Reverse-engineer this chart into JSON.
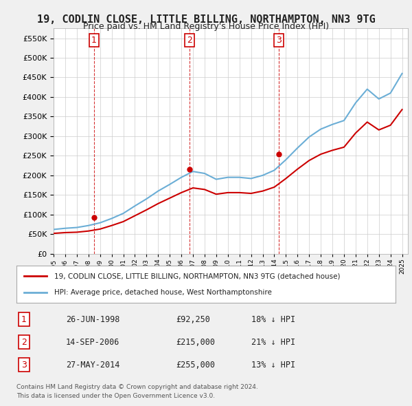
{
  "title": "19, CODLIN CLOSE, LITTLE BILLING, NORTHAMPTON, NN3 9TG",
  "subtitle": "Price paid vs. HM Land Registry's House Price Index (HPI)",
  "legend_line1": "19, CODLIN CLOSE, LITTLE BILLING, NORTHAMPTON, NN3 9TG (detached house)",
  "legend_line2": "HPI: Average price, detached house, West Northamptonshire",
  "transactions": [
    {
      "num": 1,
      "date": "26-JUN-1998",
      "price": "£92,250",
      "hpi": "18% ↓ HPI",
      "year": 1998.49
    },
    {
      "num": 2,
      "date": "14-SEP-2006",
      "price": "£215,000",
      "hpi": "21% ↓ HPI",
      "year": 2006.71
    },
    {
      "num": 3,
      "date": "27-MAY-2014",
      "price": "£255,000",
      "hpi": "13% ↓ HPI",
      "year": 2014.41
    }
  ],
  "transaction_prices": [
    92250,
    215000,
    255000
  ],
  "footnote1": "Contains HM Land Registry data © Crown copyright and database right 2024.",
  "footnote2": "This data is licensed under the Open Government Licence v3.0.",
  "hpi_color": "#6baed6",
  "price_color": "#cc0000",
  "vline_color": "#cc0000",
  "bg_color": "#f0f0f0",
  "plot_bg": "#ffffff",
  "grid_color": "#cccccc",
  "ylim": [
    0,
    575000
  ],
  "yticks": [
    0,
    50000,
    100000,
    150000,
    200000,
    250000,
    300000,
    350000,
    400000,
    450000,
    500000,
    550000
  ],
  "hpi_years": [
    1995,
    1996,
    1997,
    1998,
    1999,
    2000,
    2001,
    2002,
    2003,
    2004,
    2005,
    2006,
    2007,
    2008,
    2009,
    2010,
    2011,
    2012,
    2013,
    2014,
    2015,
    2016,
    2017,
    2018,
    2019,
    2020,
    2021,
    2022,
    2023,
    2024,
    2025
  ],
  "hpi_values": [
    62000,
    65000,
    67000,
    72000,
    79000,
    90000,
    103000,
    122000,
    140000,
    160000,
    177000,
    195000,
    210000,
    205000,
    190000,
    195000,
    195000,
    192000,
    200000,
    213000,
    240000,
    270000,
    298000,
    318000,
    330000,
    340000,
    385000,
    420000,
    395000,
    410000,
    460000
  ],
  "red_years": [
    1995,
    1996,
    1997,
    1998,
    1999,
    2000,
    2001,
    2002,
    2003,
    2004,
    2005,
    2006,
    2007,
    2008,
    2009,
    2010,
    2011,
    2012,
    2013,
    2014,
    2015,
    2016,
    2017,
    2018,
    2019,
    2020,
    2021,
    2022,
    2023,
    2024,
    2025
  ],
  "red_values": [
    52000,
    54000,
    55000,
    58000,
    63000,
    72000,
    82000,
    97000,
    112000,
    128000,
    142000,
    156000,
    168000,
    164000,
    152000,
    156000,
    156000,
    154000,
    160000,
    170000,
    192000,
    216000,
    238000,
    254000,
    264000,
    272000,
    308000,
    336000,
    316000,
    328000,
    368000
  ]
}
